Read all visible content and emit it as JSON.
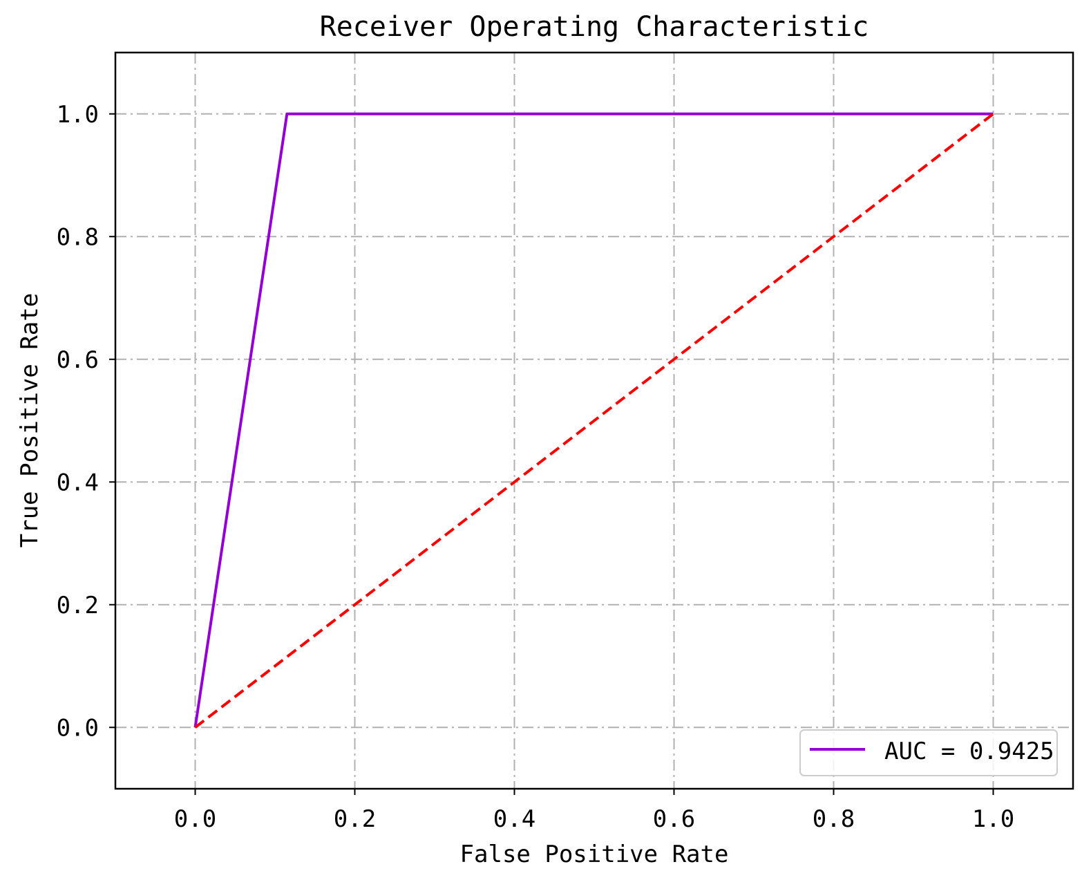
{
  "chart_data": {
    "type": "line",
    "title": "Receiver Operating Characteristic",
    "xlabel": "False Positive Rate",
    "ylabel": "True Positive Rate",
    "xlim": [
      -0.1,
      1.1
    ],
    "ylim": [
      -0.1,
      1.1
    ],
    "xticks": [
      0.0,
      0.2,
      0.4,
      0.6,
      0.8,
      1.0
    ],
    "yticks": [
      0.0,
      0.2,
      0.4,
      0.6,
      0.8,
      1.0
    ],
    "xtick_labels": [
      "0.0",
      "0.2",
      "0.4",
      "0.6",
      "0.8",
      "1.0"
    ],
    "ytick_labels": [
      "0.0",
      "0.2",
      "0.4",
      "0.6",
      "0.8",
      "1.0"
    ],
    "grid": true,
    "grid_style": "dash-dot",
    "legend_position": "lower-right",
    "series": [
      {
        "name": "AUC = 0.9425",
        "color": "#9400d3",
        "line_style": "solid",
        "x": [
          0.0,
          0.115,
          1.0
        ],
        "y": [
          0.0,
          1.0,
          1.0
        ]
      },
      {
        "color": "#ff0000",
        "line_style": "dashed",
        "x": [
          0.0,
          1.0
        ],
        "y": [
          0.0,
          1.0
        ]
      }
    ]
  }
}
